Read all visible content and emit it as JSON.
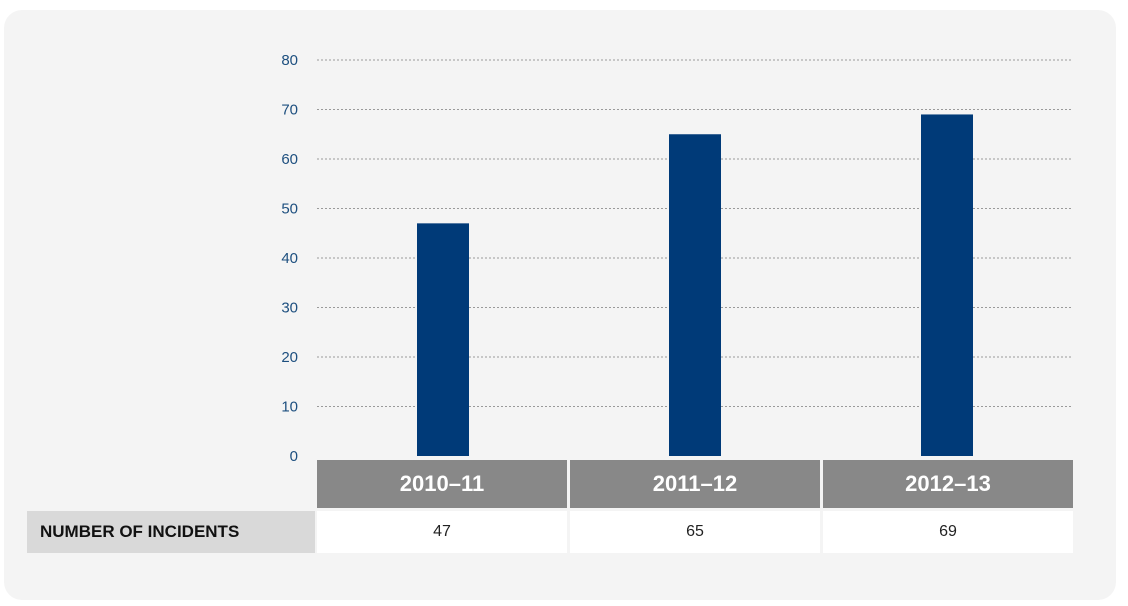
{
  "chart_data": {
    "type": "bar",
    "categories": [
      "2010–11",
      "2011–12",
      "2012–13"
    ],
    "values": [
      47,
      65,
      69
    ],
    "ylim": [
      0,
      80
    ],
    "yticks": [
      0,
      10,
      20,
      30,
      40,
      50,
      60,
      70,
      80
    ],
    "grid": true,
    "bar_color": "#003a78",
    "header_color": "#888888"
  },
  "table": {
    "row_label": "NUMBER OF INCIDENTS",
    "values": [
      "47",
      "65",
      "69"
    ]
  }
}
